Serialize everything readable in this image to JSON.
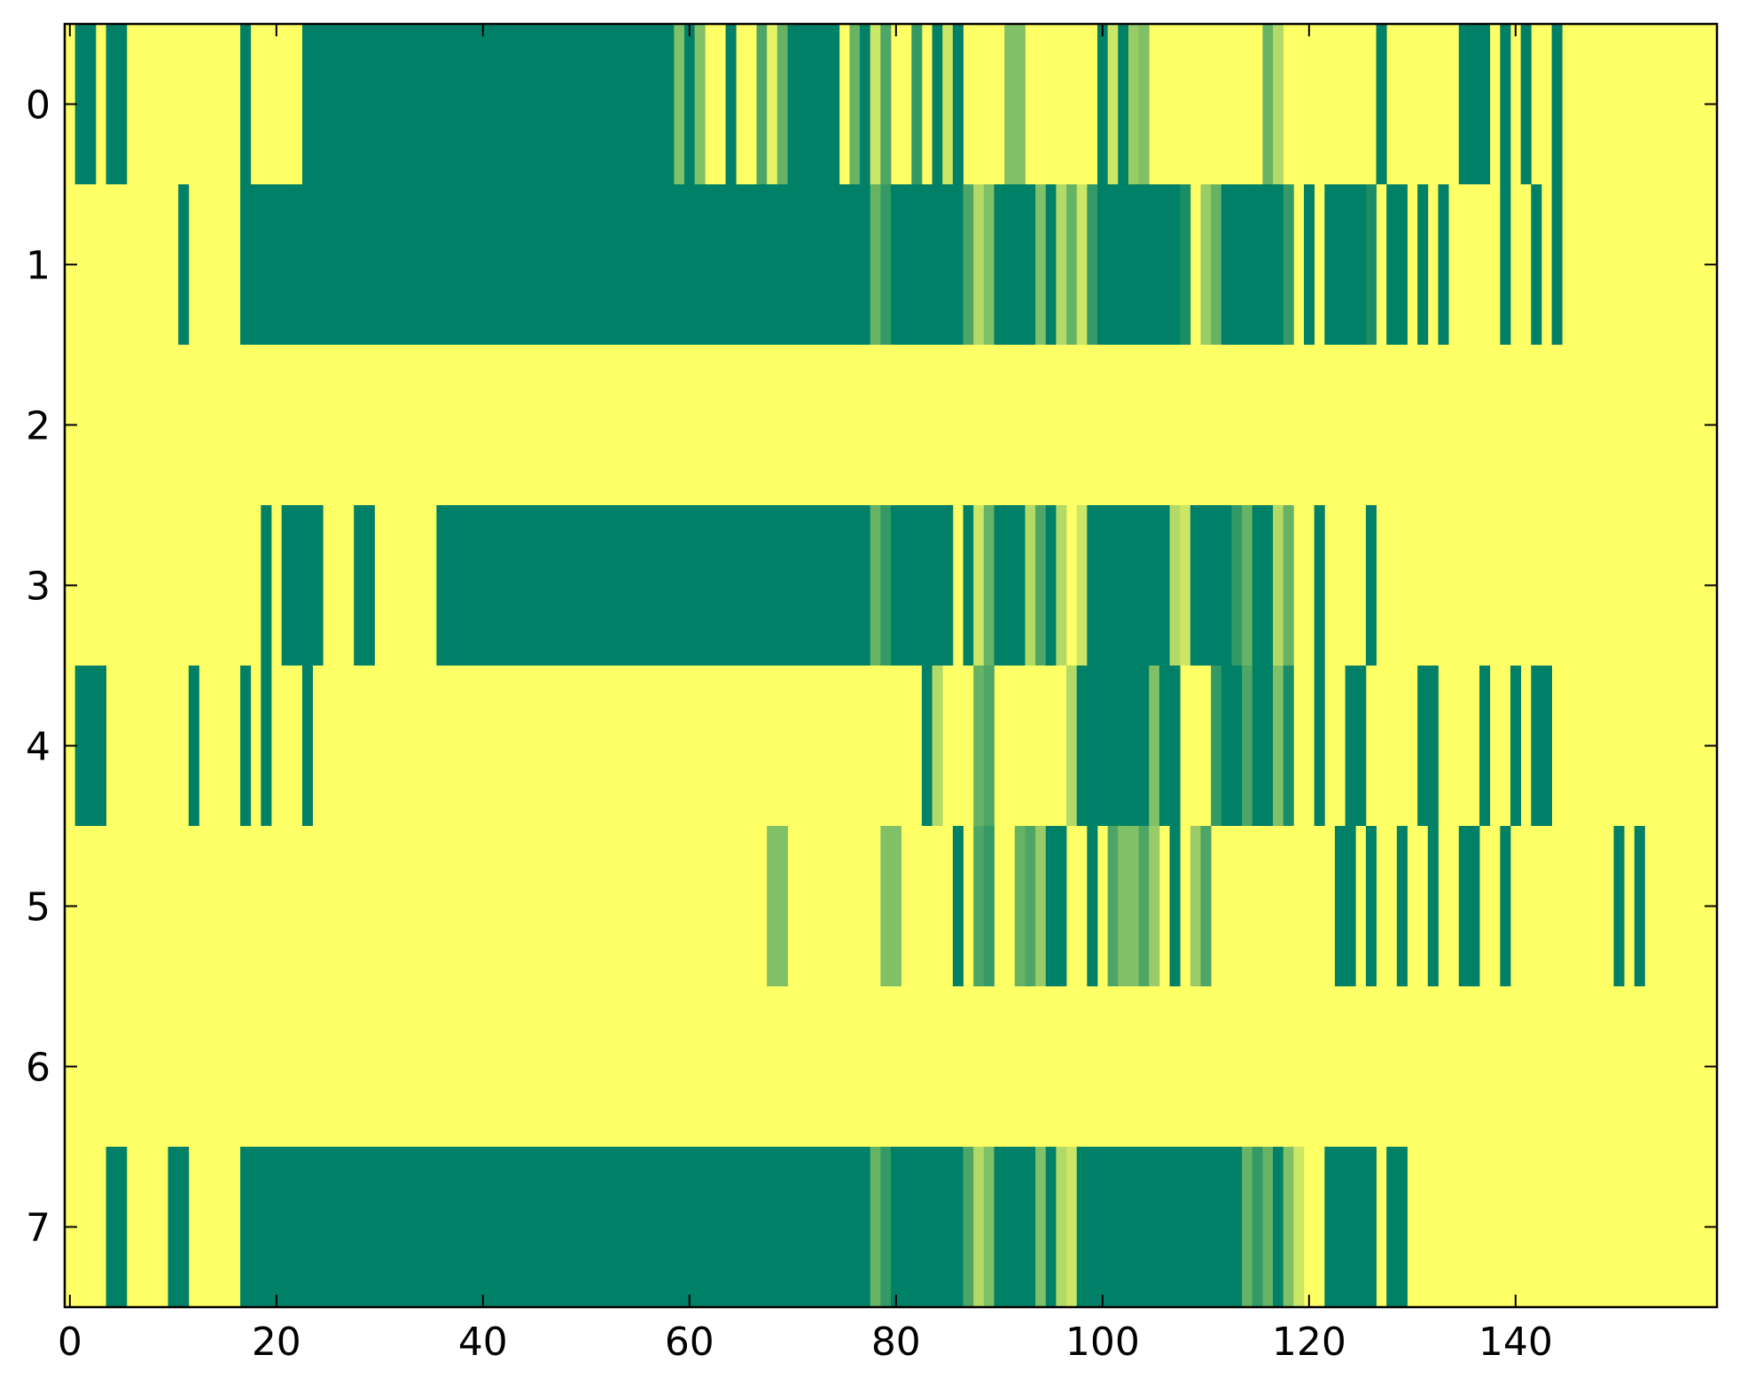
{
  "chart_data": {
    "type": "heatmap",
    "title": "",
    "xlabel": "",
    "ylabel": "",
    "colormap": "summer_r",
    "colors": {
      "low": "#ffff66",
      "high": "#008066",
      "frame": "#000000"
    },
    "xlim": [
      -0.5,
      159.5
    ],
    "ylim": [
      7.5,
      -0.5
    ],
    "x_ticks": [
      0,
      20,
      40,
      60,
      80,
      100,
      120,
      140
    ],
    "x_tick_labels": [
      "0",
      "20",
      "40",
      "60",
      "80",
      "100",
      "120",
      "140"
    ],
    "y_ticks": [
      0,
      1,
      2,
      3,
      4,
      5,
      6,
      7
    ],
    "y_tick_labels": [
      "0",
      "1",
      "2",
      "3",
      "4",
      "5",
      "6",
      "7"
    ],
    "n_cols": 160,
    "n_rows": 8,
    "grid": false,
    "legend": "none",
    "rows": [
      {
        "row": 0,
        "segments": [
          [
            1,
            2,
            1
          ],
          [
            4,
            5,
            1
          ],
          [
            17,
            17,
            1
          ],
          [
            23,
            25,
            1
          ],
          [
            26,
            58,
            1
          ],
          [
            59,
            59,
            0.5
          ],
          [
            60,
            60,
            1
          ],
          [
            61,
            61,
            0.5
          ],
          [
            64,
            64,
            1
          ],
          [
            67,
            67,
            0.7
          ],
          [
            68,
            68,
            0.1
          ],
          [
            69,
            69,
            0.6
          ],
          [
            70,
            74,
            1
          ],
          [
            76,
            76,
            0.6
          ],
          [
            77,
            77,
            1
          ],
          [
            78,
            78,
            0.2
          ],
          [
            79,
            79,
            0.7
          ],
          [
            82,
            82,
            0.8
          ],
          [
            84,
            84,
            1
          ],
          [
            85,
            85,
            0.2
          ],
          [
            86,
            86,
            1
          ],
          [
            91,
            92,
            0.5
          ],
          [
            100,
            100,
            1
          ],
          [
            101,
            101,
            0.2
          ],
          [
            102,
            102,
            1
          ],
          [
            103,
            103,
            0.4
          ],
          [
            104,
            104,
            0.5
          ],
          [
            116,
            116,
            0.6
          ],
          [
            117,
            117,
            0.3
          ],
          [
            127,
            127,
            1
          ],
          [
            135,
            137,
            1
          ],
          [
            139,
            139,
            1
          ],
          [
            141,
            141,
            1
          ],
          [
            144,
            144,
            1
          ]
        ]
      },
      {
        "row": 1,
        "segments": [
          [
            11,
            11,
            1
          ],
          [
            17,
            77,
            1
          ],
          [
            78,
            78,
            0.6
          ],
          [
            79,
            79,
            0.8
          ],
          [
            80,
            86,
            1
          ],
          [
            87,
            87,
            0.7
          ],
          [
            88,
            88,
            0.3
          ],
          [
            89,
            89,
            0.5
          ],
          [
            90,
            93,
            1
          ],
          [
            94,
            94,
            0.5
          ],
          [
            95,
            95,
            1
          ],
          [
            96,
            96,
            0.3
          ],
          [
            97,
            97,
            0.6
          ],
          [
            98,
            98,
            0.2
          ],
          [
            99,
            99,
            0.8
          ],
          [
            100,
            107,
            1
          ],
          [
            108,
            108,
            0.9
          ],
          [
            110,
            110,
            0.4
          ],
          [
            111,
            111,
            0.6
          ],
          [
            112,
            117,
            1
          ],
          [
            118,
            118,
            0.8
          ],
          [
            120,
            120,
            1
          ],
          [
            122,
            125,
            1
          ],
          [
            126,
            126,
            0.9
          ],
          [
            128,
            129,
            1
          ],
          [
            131,
            131,
            1
          ],
          [
            133,
            133,
            1
          ],
          [
            139,
            139,
            1
          ],
          [
            142,
            142,
            1
          ],
          [
            144,
            144,
            1
          ]
        ]
      },
      {
        "row": 2,
        "segments": []
      },
      {
        "row": 3,
        "segments": [
          [
            19,
            19,
            1
          ],
          [
            21,
            24,
            1
          ],
          [
            28,
            29,
            1
          ],
          [
            36,
            77,
            1
          ],
          [
            78,
            78,
            0.6
          ],
          [
            79,
            79,
            0.8
          ],
          [
            80,
            85,
            1
          ],
          [
            87,
            87,
            1
          ],
          [
            88,
            88,
            0.2
          ],
          [
            89,
            89,
            0.6
          ],
          [
            90,
            92,
            1
          ],
          [
            93,
            93,
            0.3
          ],
          [
            94,
            94,
            0.7
          ],
          [
            95,
            95,
            1
          ],
          [
            96,
            96,
            0.3
          ],
          [
            98,
            98,
            0.2
          ],
          [
            99,
            106,
            1
          ],
          [
            107,
            107,
            0.3
          ],
          [
            108,
            108,
            0.2
          ],
          [
            109,
            112,
            1
          ],
          [
            113,
            113,
            0.8
          ],
          [
            114,
            114,
            0.6
          ],
          [
            115,
            116,
            1
          ],
          [
            117,
            117,
            0.3
          ],
          [
            118,
            118,
            0.6
          ],
          [
            121,
            121,
            1
          ],
          [
            126,
            126,
            1
          ]
        ]
      },
      {
        "row": 4,
        "segments": [
          [
            1,
            3,
            1
          ],
          [
            12,
            12,
            1
          ],
          [
            17,
            17,
            1
          ],
          [
            19,
            19,
            1
          ],
          [
            23,
            23,
            1
          ],
          [
            83,
            83,
            1
          ],
          [
            84,
            84,
            0.3
          ],
          [
            88,
            88,
            0.6
          ],
          [
            89,
            89,
            0.7
          ],
          [
            97,
            97,
            0.3
          ],
          [
            98,
            104,
            1
          ],
          [
            105,
            105,
            0.5
          ],
          [
            106,
            107,
            1
          ],
          [
            111,
            111,
            0.8
          ],
          [
            112,
            113,
            1
          ],
          [
            114,
            114,
            0.7
          ],
          [
            115,
            116,
            1
          ],
          [
            117,
            117,
            0.5
          ],
          [
            118,
            118,
            0.9
          ],
          [
            121,
            121,
            1
          ],
          [
            124,
            125,
            1
          ],
          [
            131,
            132,
            1
          ],
          [
            137,
            137,
            1
          ],
          [
            140,
            140,
            1
          ],
          [
            142,
            143,
            1
          ]
        ]
      },
      {
        "row": 5,
        "segments": [
          [
            68,
            69,
            0.5
          ],
          [
            79,
            80,
            0.5
          ],
          [
            86,
            86,
            1
          ],
          [
            88,
            88,
            0.7
          ],
          [
            89,
            89,
            0.8
          ],
          [
            92,
            92,
            0.6
          ],
          [
            93,
            93,
            0.7
          ],
          [
            94,
            94,
            0.4
          ],
          [
            95,
            96,
            1
          ],
          [
            99,
            99,
            1
          ],
          [
            101,
            101,
            0.7
          ],
          [
            102,
            103,
            0.5
          ],
          [
            104,
            104,
            0.7
          ],
          [
            105,
            105,
            0.4
          ],
          [
            107,
            107,
            1
          ],
          [
            109,
            109,
            0.4
          ],
          [
            110,
            110,
            0.7
          ],
          [
            123,
            124,
            1
          ],
          [
            126,
            126,
            1
          ],
          [
            129,
            129,
            1
          ],
          [
            132,
            132,
            1
          ],
          [
            135,
            136,
            1
          ],
          [
            139,
            139,
            1
          ],
          [
            150,
            150,
            1
          ],
          [
            152,
            152,
            1
          ]
        ]
      },
      {
        "row": 6,
        "segments": []
      },
      {
        "row": 7,
        "segments": [
          [
            4,
            5,
            1
          ],
          [
            10,
            11,
            1
          ],
          [
            17,
            77,
            1
          ],
          [
            78,
            78,
            0.6
          ],
          [
            79,
            79,
            0.8
          ],
          [
            80,
            86,
            1
          ],
          [
            87,
            87,
            0.7
          ],
          [
            88,
            88,
            0.3
          ],
          [
            89,
            89,
            0.5
          ],
          [
            90,
            93,
            1
          ],
          [
            94,
            94,
            0.5
          ],
          [
            95,
            95,
            1
          ],
          [
            96,
            96,
            0.3
          ],
          [
            97,
            97,
            0.2
          ],
          [
            98,
            113,
            1
          ],
          [
            114,
            114,
            0.6
          ],
          [
            115,
            115,
            0.8
          ],
          [
            116,
            116,
            0.6
          ],
          [
            117,
            117,
            1
          ],
          [
            118,
            118,
            0.5
          ],
          [
            119,
            119,
            0.2
          ],
          [
            122,
            126,
            1
          ],
          [
            128,
            129,
            1
          ]
        ]
      }
    ]
  }
}
